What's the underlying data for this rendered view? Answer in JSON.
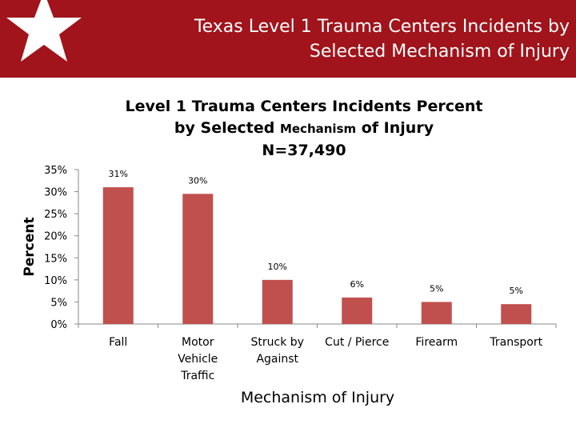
{
  "header": {
    "title_line1": "Texas Level 1 Trauma Centers Incidents by",
    "title_line2": "Selected Mechanism of Injury",
    "color": "#a1141b",
    "icon": "star-icon"
  },
  "chart_data": {
    "type": "bar",
    "title_line1": "Level 1 Trauma Centers Incidents Percent",
    "title_line2_part1": "by Selected",
    "title_line2_part2": "Mechanism",
    "title_line2_part3": "of Injury",
    "title_line3": "N=37,490",
    "xlabel": "Mechanism of Injury",
    "ylabel": "Percent",
    "categories": [
      "Fall",
      "Motor Vehicle Traffic",
      "Struck by Against",
      "Cut / Pierce",
      "Firearm",
      "Transport"
    ],
    "category_lines": [
      [
        "Fall"
      ],
      [
        "Motor",
        "Vehicle",
        "Traffic"
      ],
      [
        "Struck by",
        "Against"
      ],
      [
        "Cut / Pierce"
      ],
      [
        "Firearm"
      ],
      [
        "Transport"
      ]
    ],
    "values": [
      31,
      29.5,
      10,
      6,
      5,
      4.5
    ],
    "data_labels": [
      "31%",
      "30%",
      "10%",
      "6%",
      "5%",
      "5%"
    ],
    "yticks": [
      "0%",
      "5%",
      "10%",
      "15%",
      "20%",
      "25%",
      "30%",
      "35%"
    ],
    "ylim": [
      0,
      35
    ],
    "bar_color": "#c0504d",
    "grid": false,
    "legend": "none"
  }
}
